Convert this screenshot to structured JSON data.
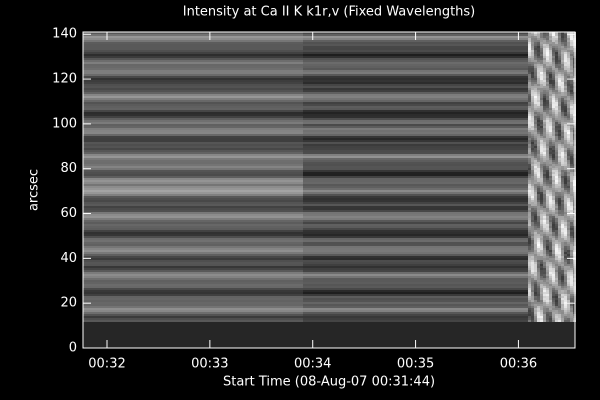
{
  "chart_data": {
    "type": "heatmap",
    "title": "Intensity at Ca II K k1r,v (Fixed Wavelengths)",
    "x_label": "Start Time (08-Aug-07 00:31:44)",
    "y_label": "arcsec",
    "xlim": [
      2,
      289
    ],
    "xticks": [
      {
        "value": 16,
        "label": "00:32"
      },
      {
        "value": 76,
        "label": "00:33"
      },
      {
        "value": 136,
        "label": "00:34"
      },
      {
        "value": 196,
        "label": "00:35"
      },
      {
        "value": 256,
        "label": "00:36"
      }
    ],
    "ylim": [
      0,
      141
    ],
    "yticks": [
      0,
      20,
      40,
      60,
      80,
      100,
      120,
      140
    ]
  }
}
